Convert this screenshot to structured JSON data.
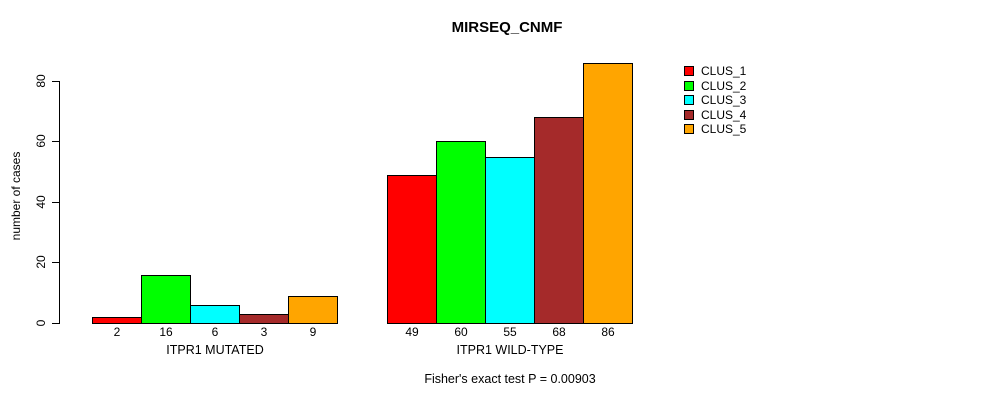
{
  "title": "MIRSEQ_CNMF",
  "chart_data": {
    "type": "bar",
    "title": "MIRSEQ_CNMF",
    "xlabel": "",
    "ylabel": "number of cases",
    "ylim": [
      0,
      86
    ],
    "yticks": [
      0,
      20,
      40,
      60,
      80
    ],
    "grid": false,
    "legend_position": "right",
    "series_names": [
      "CLUS_1",
      "CLUS_2",
      "CLUS_3",
      "CLUS_4",
      "CLUS_5"
    ],
    "series_colors": [
      "#ff0000",
      "#00ff00",
      "#00ffff",
      "#a52a2a",
      "#ffa500"
    ],
    "groups": [
      {
        "label": "ITPR1 MUTATED",
        "values": [
          2,
          16,
          6,
          3,
          9
        ]
      },
      {
        "label": "ITPR1 WILD-TYPE",
        "values": [
          49,
          60,
          55,
          68,
          86
        ]
      }
    ],
    "bar_value_labels": [
      [
        2,
        16,
        6,
        3,
        9
      ],
      [
        49,
        60,
        55,
        68,
        86
      ]
    ],
    "annotation": "Fisher's exact test P = 0.00903",
    "bar_border_color": "#000000",
    "text_color": "#000000",
    "background_color": "#ffffff"
  }
}
